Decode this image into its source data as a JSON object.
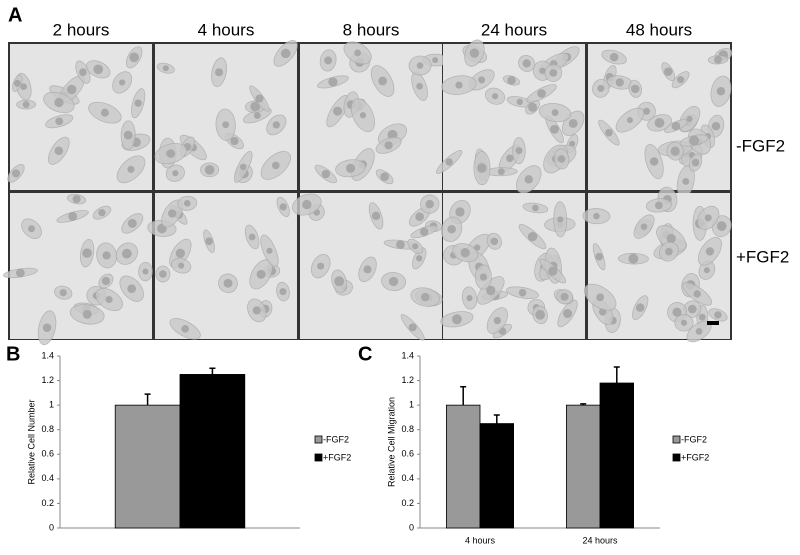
{
  "panel_a": {
    "label": "A",
    "columns": [
      "2 hours",
      "4 hours",
      "8 hours",
      "24 hours",
      "48 hours"
    ],
    "rows": [
      "-FGF2",
      "+FGF2"
    ]
  },
  "chart_data": [
    {
      "type": "bar",
      "label": "B",
      "ylabel": "Relative Cell Number",
      "categories": [
        null
      ],
      "ylim": [
        0,
        1.4
      ],
      "yticks": [
        0,
        0.2,
        0.4,
        0.6,
        0.8,
        1,
        1.2,
        1.4
      ],
      "legend": "right",
      "series": [
        {
          "name": "-FGF2",
          "color": "#999999",
          "values": [
            1.0
          ],
          "errors": [
            0.09
          ]
        },
        {
          "name": "+FGF2",
          "color": "#000000",
          "values": [
            1.25
          ],
          "errors": [
            0.05
          ]
        }
      ]
    },
    {
      "type": "bar",
      "label": "C",
      "ylabel": "Relative Cell Migration",
      "categories": [
        "4 hours",
        "24 hours"
      ],
      "ylim": [
        0,
        1.4
      ],
      "yticks": [
        0,
        0.2,
        0.4,
        0.6,
        0.8,
        1,
        1.2,
        1.4
      ],
      "legend": "right",
      "series": [
        {
          "name": "-FGF2",
          "color": "#999999",
          "values": [
            1.0,
            1.0
          ],
          "errors": [
            0.15,
            0.01
          ]
        },
        {
          "name": "+FGF2",
          "color": "#000000",
          "values": [
            0.85,
            1.18
          ],
          "errors": [
            0.07,
            0.13
          ]
        }
      ]
    }
  ]
}
